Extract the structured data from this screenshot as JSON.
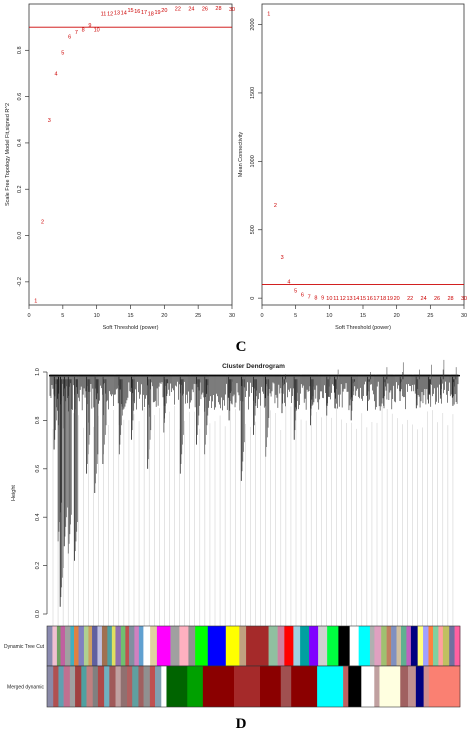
{
  "figure": {
    "panel_letter_top": "C",
    "panel_letter_bottom": "D"
  },
  "chart_data": [
    {
      "type": "scatter",
      "xlabel": "Soft Threshold (power)",
      "ylabel": "Scale Free Topology Model Fit,signed R^2",
      "xlim": [
        0,
        30
      ],
      "ylim": [
        -0.3,
        1.0
      ],
      "x_ticks": [
        "0",
        "5",
        "10",
        "15",
        "20",
        "25",
        "30"
      ],
      "y_ticks": [
        "-0.2",
        "0.0",
        "0.2",
        "0.4",
        "0.6",
        "0.8"
      ],
      "y_tick_values": [
        -0.2,
        0.0,
        0.2,
        0.4,
        0.6,
        0.8
      ],
      "x_tick_values": [
        0,
        5,
        10,
        15,
        20,
        25,
        30
      ],
      "threshold_line": 0.9,
      "point_color": "#cc0000",
      "line_color": "#cc0000",
      "points": [
        {
          "x": 1,
          "y": -0.28,
          "label": "1"
        },
        {
          "x": 2,
          "y": 0.06,
          "label": "2"
        },
        {
          "x": 3,
          "y": 0.5,
          "label": "3"
        },
        {
          "x": 4,
          "y": 0.7,
          "label": "4"
        },
        {
          "x": 5,
          "y": 0.79,
          "label": "5"
        },
        {
          "x": 6,
          "y": 0.86,
          "label": "6"
        },
        {
          "x": 7,
          "y": 0.88,
          "label": "7"
        },
        {
          "x": 8,
          "y": 0.89,
          "label": "8"
        },
        {
          "x": 9,
          "y": 0.91,
          "label": "9"
        },
        {
          "x": 10,
          "y": 0.89,
          "label": "10"
        },
        {
          "x": 11,
          "y": 0.96,
          "label": "11"
        },
        {
          "x": 12,
          "y": 0.96,
          "label": "12"
        },
        {
          "x": 13,
          "y": 0.963,
          "label": "13"
        },
        {
          "x": 14,
          "y": 0.963,
          "label": "14"
        },
        {
          "x": 15,
          "y": 0.975,
          "label": "15"
        },
        {
          "x": 16,
          "y": 0.97,
          "label": "16"
        },
        {
          "x": 17,
          "y": 0.965,
          "label": "17"
        },
        {
          "x": 18,
          "y": 0.96,
          "label": "18"
        },
        {
          "x": 19,
          "y": 0.965,
          "label": "19"
        },
        {
          "x": 20,
          "y": 0.975,
          "label": "20"
        },
        {
          "x": 22,
          "y": 0.98,
          "label": "22"
        },
        {
          "x": 24,
          "y": 0.98,
          "label": "24"
        },
        {
          "x": 26,
          "y": 0.98,
          "label": "26"
        },
        {
          "x": 28,
          "y": 0.983,
          "label": "28"
        },
        {
          "x": 30,
          "y": 0.978,
          "label": "30"
        }
      ]
    },
    {
      "type": "scatter",
      "xlabel": "Soft Threshold (power)",
      "ylabel": "Mean Connectivity",
      "xlim": [
        0,
        30
      ],
      "ylim": [
        -50,
        2150
      ],
      "x_ticks": [
        "0",
        "5",
        "10",
        "15",
        "20",
        "25",
        "30"
      ],
      "x_tick_values": [
        0,
        5,
        10,
        15,
        20,
        25,
        30
      ],
      "y_ticks": [
        "0",
        "500",
        "1000",
        "1500",
        "2000"
      ],
      "y_tick_values": [
        0,
        500,
        1000,
        1500,
        2000
      ],
      "threshold_line": 100,
      "point_color": "#cc0000",
      "line_color": "#cc0000",
      "points": [
        {
          "x": 1,
          "y": 2080,
          "label": "1"
        },
        {
          "x": 2,
          "y": 680,
          "label": "2"
        },
        {
          "x": 3,
          "y": 300,
          "label": "3"
        },
        {
          "x": 4,
          "y": 120,
          "label": "4"
        },
        {
          "x": 5,
          "y": 55,
          "label": "5"
        },
        {
          "x": 6,
          "y": 25,
          "label": "6"
        },
        {
          "x": 7,
          "y": 12,
          "label": "7"
        },
        {
          "x": 8,
          "y": 6,
          "label": "8"
        },
        {
          "x": 9,
          "y": 3,
          "label": "9"
        },
        {
          "x": 10,
          "y": 2,
          "label": "10"
        },
        {
          "x": 11,
          "y": 1,
          "label": "11"
        },
        {
          "x": 12,
          "y": 1,
          "label": "12"
        },
        {
          "x": 13,
          "y": 1,
          "label": "13"
        },
        {
          "x": 14,
          "y": 1,
          "label": "14"
        },
        {
          "x": 15,
          "y": 1,
          "label": "15"
        },
        {
          "x": 16,
          "y": 1,
          "label": "16"
        },
        {
          "x": 17,
          "y": 1,
          "label": "17"
        },
        {
          "x": 18,
          "y": 1,
          "label": "18"
        },
        {
          "x": 19,
          "y": 1,
          "label": "19"
        },
        {
          "x": 20,
          "y": 1,
          "label": "20"
        },
        {
          "x": 22,
          "y": 1,
          "label": "22"
        },
        {
          "x": 24,
          "y": 1,
          "label": "24"
        },
        {
          "x": 26,
          "y": 1,
          "label": "26"
        },
        {
          "x": 28,
          "y": 1,
          "label": "28"
        },
        {
          "x": 30,
          "y": 1,
          "label": "30"
        }
      ]
    },
    {
      "type": "dendrogram",
      "title": "Cluster Dendrogram",
      "ylabel": "Height",
      "ylim": [
        0.0,
        1.0
      ],
      "y_ticks": [
        "0.0",
        "0.2",
        "0.4",
        "0.6",
        "0.8",
        "1.0"
      ],
      "y_tick_values": [
        0.0,
        0.2,
        0.4,
        0.6,
        0.8,
        1.0
      ],
      "leaf_stems": [
        {
          "pos": 0.01,
          "y": 0.68
        },
        {
          "pos": 0.02,
          "y": 0.3
        },
        {
          "pos": 0.025,
          "y": 0.03
        },
        {
          "pos": 0.035,
          "y": 0.28
        },
        {
          "pos": 0.045,
          "y": 0.25
        },
        {
          "pos": 0.06,
          "y": 0.22
        },
        {
          "pos": 0.09,
          "y": 0.58
        },
        {
          "pos": 0.11,
          "y": 0.5
        },
        {
          "pos": 0.13,
          "y": 0.62
        },
        {
          "pos": 0.17,
          "y": 0.66
        },
        {
          "pos": 0.2,
          "y": 0.72
        },
        {
          "pos": 0.24,
          "y": 0.6
        },
        {
          "pos": 0.28,
          "y": 0.75
        },
        {
          "pos": 0.32,
          "y": 0.58
        },
        {
          "pos": 0.36,
          "y": 0.7
        },
        {
          "pos": 0.38,
          "y": 0.66
        },
        {
          "pos": 0.44,
          "y": 0.8
        },
        {
          "pos": 0.47,
          "y": 0.55
        },
        {
          "pos": 0.5,
          "y": 0.74
        },
        {
          "pos": 0.53,
          "y": 0.65
        },
        {
          "pos": 0.57,
          "y": 0.83
        },
        {
          "pos": 0.6,
          "y": 0.72
        },
        {
          "pos": 0.64,
          "y": 0.78
        },
        {
          "pos": 0.68,
          "y": 0.82
        },
        {
          "pos": 0.7,
          "y": 0.85
        },
        {
          "pos": 0.74,
          "y": 0.8
        },
        {
          "pos": 0.78,
          "y": 0.84
        },
        {
          "pos": 0.82,
          "y": 0.86
        },
        {
          "pos": 0.86,
          "y": 0.88
        },
        {
          "pos": 0.9,
          "y": 0.85
        },
        {
          "pos": 0.93,
          "y": 0.87
        },
        {
          "pos": 0.96,
          "y": 0.89
        },
        {
          "pos": 0.99,
          "y": 0.86
        }
      ],
      "color_rows": [
        {
          "label": "Dynamic Tree Cut",
          "segments": [
            {
              "w": 0.012,
              "c": "#8a8ab0"
            },
            {
              "w": 0.01,
              "c": "#f0c0d0"
            },
            {
              "w": 0.008,
              "c": "#6fa060"
            },
            {
              "w": 0.01,
              "c": "#c060a0"
            },
            {
              "w": 0.012,
              "c": "#a0a0a0"
            },
            {
              "w": 0.008,
              "c": "#40b0c0"
            },
            {
              "w": 0.01,
              "c": "#e08040"
            },
            {
              "w": 0.012,
              "c": "#8080c0"
            },
            {
              "w": 0.01,
              "c": "#b0d090"
            },
            {
              "w": 0.008,
              "c": "#d0a060"
            },
            {
              "w": 0.012,
              "c": "#6060a0"
            },
            {
              "w": 0.01,
              "c": "#c0c0e0"
            },
            {
              "w": 0.012,
              "c": "#a07050"
            },
            {
              "w": 0.01,
              "c": "#50a0a0"
            },
            {
              "w": 0.008,
              "c": "#e0e060"
            },
            {
              "w": 0.012,
              "c": "#9070b0"
            },
            {
              "w": 0.01,
              "c": "#70c070"
            },
            {
              "w": 0.008,
              "c": "#c05050"
            },
            {
              "w": 0.012,
              "c": "#8090a0"
            },
            {
              "w": 0.01,
              "c": "#d080c0"
            },
            {
              "w": 0.01,
              "c": "#60a0d0"
            },
            {
              "w": 0.015,
              "c": "#ffffff"
            },
            {
              "w": 0.015,
              "c": "#e0d0a0"
            },
            {
              "w": 0.03,
              "c": "#ff00ff"
            },
            {
              "w": 0.02,
              "c": "#a0a0a0"
            },
            {
              "w": 0.02,
              "c": "#ffb0c0"
            },
            {
              "w": 0.015,
              "c": "#909090"
            },
            {
              "w": 0.028,
              "c": "#00ff00"
            },
            {
              "w": 0.04,
              "c": "#0000ff"
            },
            {
              "w": 0.03,
              "c": "#ffff00"
            },
            {
              "w": 0.015,
              "c": "#c0a080"
            },
            {
              "w": 0.05,
              "c": "#a52a2a"
            },
            {
              "w": 0.02,
              "c": "#90c0a0"
            },
            {
              "w": 0.015,
              "c": "#d080a0"
            },
            {
              "w": 0.02,
              "c": "#ff0000"
            },
            {
              "w": 0.015,
              "c": "#a0d0e0"
            },
            {
              "w": 0.02,
              "c": "#00a0a0"
            },
            {
              "w": 0.02,
              "c": "#8000ff"
            },
            {
              "w": 0.02,
              "c": "#d0d0d0"
            },
            {
              "w": 0.025,
              "c": "#00ff40"
            },
            {
              "w": 0.025,
              "c": "#000000"
            },
            {
              "w": 0.02,
              "c": "#ffffff"
            },
            {
              "w": 0.025,
              "c": "#00ffff"
            },
            {
              "w": 0.01,
              "c": "#b0b0b0"
            },
            {
              "w": 0.015,
              "c": "#e0a0c0"
            },
            {
              "w": 0.012,
              "c": "#a0c070"
            },
            {
              "w": 0.01,
              "c": "#c08060"
            },
            {
              "w": 0.012,
              "c": "#8090c0"
            },
            {
              "w": 0.01,
              "c": "#d0c0a0"
            },
            {
              "w": 0.012,
              "c": "#60b090"
            },
            {
              "w": 0.01,
              "c": "#c060c0"
            },
            {
              "w": 0.015,
              "c": "#000080"
            },
            {
              "w": 0.012,
              "c": "#ffff80"
            },
            {
              "w": 0.012,
              "c": "#a0a0ff"
            },
            {
              "w": 0.01,
              "c": "#ff8040"
            },
            {
              "w": 0.012,
              "c": "#80d0a0"
            },
            {
              "w": 0.01,
              "c": "#ffa0a0"
            },
            {
              "w": 0.014,
              "c": "#c0c060"
            },
            {
              "w": 0.012,
              "c": "#7070a0"
            },
            {
              "w": 0.012,
              "c": "#ff60a0"
            }
          ]
        },
        {
          "label": "Merged dynamic",
          "segments": [
            {
              "w": 0.012,
              "c": "#8a8aa8"
            },
            {
              "w": 0.01,
              "c": "#b05050"
            },
            {
              "w": 0.01,
              "c": "#60a0b0"
            },
            {
              "w": 0.012,
              "c": "#c07090"
            },
            {
              "w": 0.01,
              "c": "#a0a0a0"
            },
            {
              "w": 0.012,
              "c": "#a04040"
            },
            {
              "w": 0.01,
              "c": "#50a0a0"
            },
            {
              "w": 0.012,
              "c": "#c08080"
            },
            {
              "w": 0.01,
              "c": "#808080"
            },
            {
              "w": 0.012,
              "c": "#b04848"
            },
            {
              "w": 0.01,
              "c": "#70b0c0"
            },
            {
              "w": 0.012,
              "c": "#a05858"
            },
            {
              "w": 0.01,
              "c": "#c0a0a0"
            },
            {
              "w": 0.012,
              "c": "#907070"
            },
            {
              "w": 0.01,
              "c": "#b06060"
            },
            {
              "w": 0.012,
              "c": "#60a0a0"
            },
            {
              "w": 0.01,
              "c": "#a06060"
            },
            {
              "w": 0.012,
              "c": "#909090"
            },
            {
              "w": 0.01,
              "c": "#c05050"
            },
            {
              "w": 0.012,
              "c": "#80a0b0"
            },
            {
              "w": 0.01,
              "c": "#ffffff"
            },
            {
              "w": 0.04,
              "c": "#006400"
            },
            {
              "w": 0.03,
              "c": "#00a000"
            },
            {
              "w": 0.06,
              "c": "#8b0000"
            },
            {
              "w": 0.05,
              "c": "#a52a2a"
            },
            {
              "w": 0.04,
              "c": "#8b0000"
            },
            {
              "w": 0.02,
              "c": "#a05050"
            },
            {
              "w": 0.05,
              "c": "#8b0000"
            },
            {
              "w": 0.05,
              "c": "#00ffff"
            },
            {
              "w": 0.01,
              "c": "#c06060"
            },
            {
              "w": 0.025,
              "c": "#000000"
            },
            {
              "w": 0.025,
              "c": "#ffffff"
            },
            {
              "w": 0.01,
              "c": "#c0a0a0"
            },
            {
              "w": 0.04,
              "c": "#ffffe0"
            },
            {
              "w": 0.015,
              "c": "#a06060"
            },
            {
              "w": 0.015,
              "c": "#c09090"
            },
            {
              "w": 0.015,
              "c": "#000080"
            },
            {
              "w": 0.01,
              "c": "#d09090"
            },
            {
              "w": 0.06,
              "c": "#fa8072"
            }
          ]
        }
      ]
    }
  ]
}
